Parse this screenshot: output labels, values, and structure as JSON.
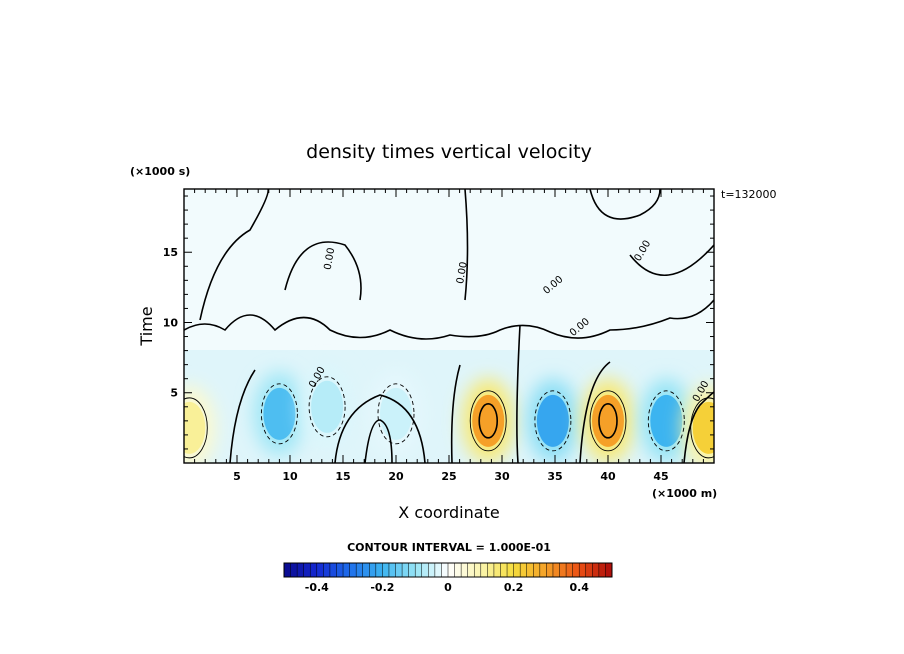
{
  "chart_data": {
    "type": "heatmap",
    "title": "density times vertical velocity",
    "xlabel": "X coordinate",
    "ylabel": "Time",
    "x_unit": "(×1000 m)",
    "y_unit": "(×1000 s)",
    "time_label": "t=132000",
    "xlim": [
      0,
      50
    ],
    "ylim": [
      0,
      19.5
    ],
    "x_ticks": [
      5,
      10,
      15,
      20,
      25,
      30,
      35,
      40,
      45
    ],
    "y_ticks": [
      5,
      10,
      15
    ],
    "contour_interval_text": "CONTOUR INTERVAL = 1.000E-01",
    "contour_label": "0.00",
    "colorbar": {
      "min": -0.5,
      "max": 0.5,
      "ticks": [
        "-0.4",
        "-0.2",
        "0",
        "0.2",
        "0.4"
      ],
      "tick_values": [
        -0.4,
        -0.2,
        0,
        0.2,
        0.4
      ]
    },
    "features": [
      {
        "x": 0.5,
        "y": 2.5,
        "value": 0.12
      },
      {
        "x": 9.0,
        "y": 3.5,
        "value": -0.18
      },
      {
        "x": 13.5,
        "y": 4.0,
        "value": -0.07
      },
      {
        "x": 20.0,
        "y": 3.5,
        "value": -0.05
      },
      {
        "x": 28.7,
        "y": 3.0,
        "value": 0.3
      },
      {
        "x": 34.8,
        "y": 3.0,
        "value": -0.22
      },
      {
        "x": 40.0,
        "y": 3.0,
        "value": 0.3
      },
      {
        "x": 45.5,
        "y": 3.0,
        "value": -0.2
      },
      {
        "x": 49.5,
        "y": 2.5,
        "value": 0.22
      }
    ]
  }
}
